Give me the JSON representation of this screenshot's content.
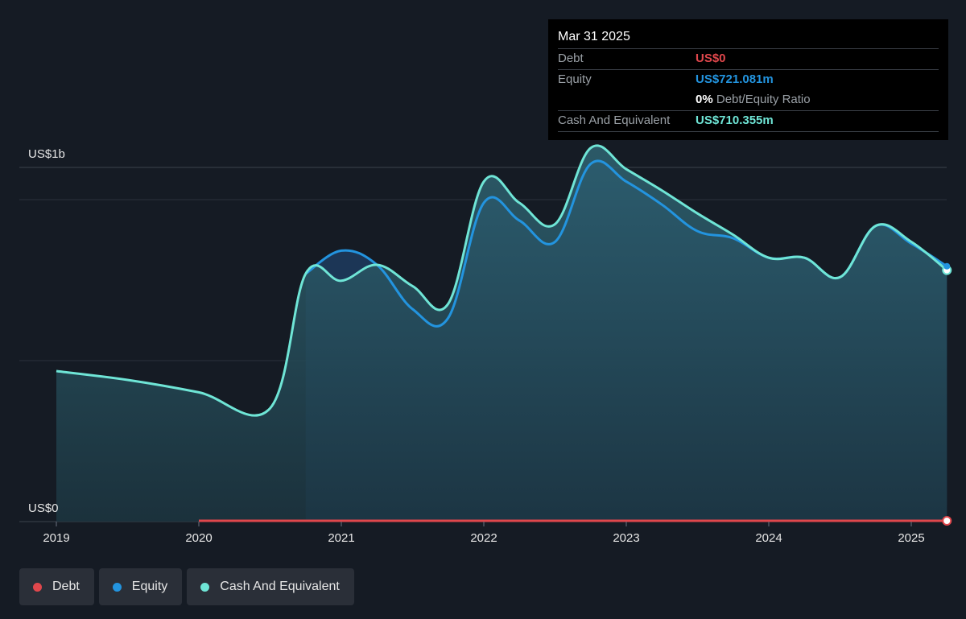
{
  "colors": {
    "debt": "#e0474c",
    "equity": "#2394df",
    "cash": "#6fe5d6",
    "background": "#151b24",
    "gridline": "#2c323b"
  },
  "tooltip": {
    "date": "Mar 31 2025",
    "debt_label": "Debt",
    "debt_value": "US$0",
    "equity_label": "Equity",
    "equity_value": "US$721.081m",
    "ratio_value": "0%",
    "ratio_label": "Debt/Equity Ratio",
    "cash_label": "Cash And Equivalent",
    "cash_value": "US$710.355m"
  },
  "legend": {
    "debt": "Debt",
    "equity": "Equity",
    "cash": "Cash And Equivalent"
  },
  "chart_data": {
    "type": "area",
    "ylim": [
      0,
      1100
    ],
    "y_tick_labels": [
      {
        "value": 1000,
        "label": "US$1b"
      },
      {
        "value": 0,
        "label": "US$0"
      }
    ],
    "x_ticks": [
      {
        "value": 2019.0,
        "label": "2019"
      },
      {
        "value": 2020.0,
        "label": "2020"
      },
      {
        "value": 2021.0,
        "label": "2021"
      },
      {
        "value": 2022.0,
        "label": "2022"
      },
      {
        "value": 2023.0,
        "label": "2023"
      },
      {
        "value": 2024.0,
        "label": "2024"
      },
      {
        "value": 2025.0,
        "label": "2025"
      }
    ],
    "xlim": [
      2018.75,
      2025.25
    ],
    "series": [
      {
        "name": "Debt",
        "key": "debt",
        "x": [
          2020.0,
          2025.25
        ],
        "values": [
          0,
          0
        ]
      },
      {
        "name": "Equity",
        "key": "equity",
        "x": [
          2020.75,
          2021.0,
          2021.25,
          2021.5,
          2021.75,
          2022.0,
          2022.25,
          2022.5,
          2022.75,
          2023.0,
          2023.25,
          2023.5,
          2023.75,
          2024.0,
          2024.25,
          2024.5,
          2024.75,
          2025.0,
          2025.25
        ],
        "values": [
          700,
          765,
          725,
          600,
          575,
          900,
          850,
          790,
          1010,
          960,
          895,
          820,
          800,
          745,
          745,
          690,
          835,
          785,
          721
        ]
      },
      {
        "name": "Cash And Equivalent",
        "key": "cash",
        "x": [
          2019.0,
          2019.5,
          2020.0,
          2020.5,
          2020.75,
          2021.0,
          2021.25,
          2021.5,
          2021.75,
          2022.0,
          2022.25,
          2022.5,
          2022.75,
          2023.0,
          2023.25,
          2023.5,
          2023.75,
          2024.0,
          2024.25,
          2024.5,
          2024.75,
          2025.0,
          2025.25
        ],
        "values": [
          425,
          400,
          365,
          320,
          700,
          680,
          725,
          665,
          615,
          960,
          900,
          840,
          1055,
          995,
          935,
          870,
          810,
          745,
          745,
          690,
          835,
          790,
          710
        ]
      }
    ]
  }
}
